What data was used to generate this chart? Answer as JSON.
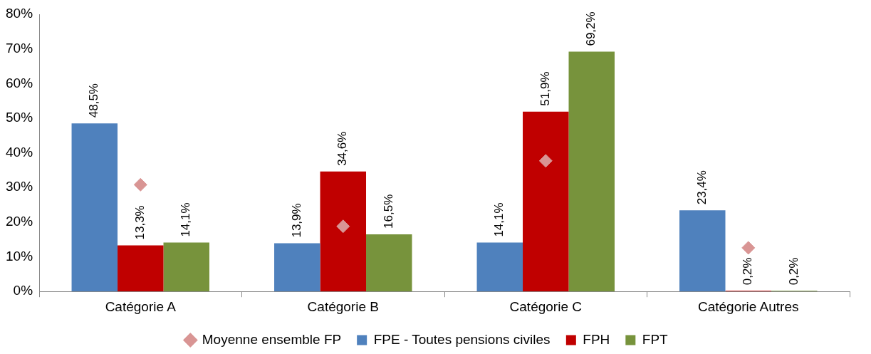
{
  "chart_data": {
    "type": "bar",
    "categories": [
      "Catégorie A",
      "Catégorie B",
      "Catégorie C",
      "Catégorie Autres"
    ],
    "series": [
      {
        "name": "FPE - Toutes pensions civiles",
        "color": "#4f81bd",
        "values": [
          48.5,
          13.9,
          14.1,
          23.4
        ],
        "value_labels": [
          "48,5%",
          "13,9%",
          "14,1%",
          "23,4%"
        ]
      },
      {
        "name": "FPH",
        "color": "#c00000",
        "values": [
          13.3,
          34.6,
          51.9,
          0.2
        ],
        "value_labels": [
          "13,3%",
          "34,6%",
          "51,9%",
          "0,2%"
        ]
      },
      {
        "name": "FPT",
        "color": "#77933c",
        "values": [
          14.1,
          16.5,
          69.2,
          0.2
        ],
        "value_labels": [
          "14,1%",
          "16,5%",
          "69,2%",
          "0,2%"
        ]
      },
      {
        "name": "Moyenne ensemble FP",
        "type": "scatter",
        "color": "#d99594",
        "marker": "diamond",
        "x": [
          "Catégorie A",
          "Catégorie B",
          "Catégorie C",
          "Catégorie Autres"
        ],
        "values": [
          30.8,
          18.8,
          37.7,
          12.6
        ]
      }
    ],
    "ylim": [
      0,
      80
    ],
    "yticks": [
      {
        "value": 0,
        "label": "0%"
      },
      {
        "value": 10,
        "label": "10%"
      },
      {
        "value": 20,
        "label": "20%"
      },
      {
        "value": 30,
        "label": "30%"
      },
      {
        "value": 40,
        "label": "40%"
      },
      {
        "value": 50,
        "label": "50%"
      },
      {
        "value": 60,
        "label": "60%"
      },
      {
        "value": 70,
        "label": "70%"
      },
      {
        "value": 80,
        "label": "80%"
      }
    ],
    "legend": "bottom"
  }
}
